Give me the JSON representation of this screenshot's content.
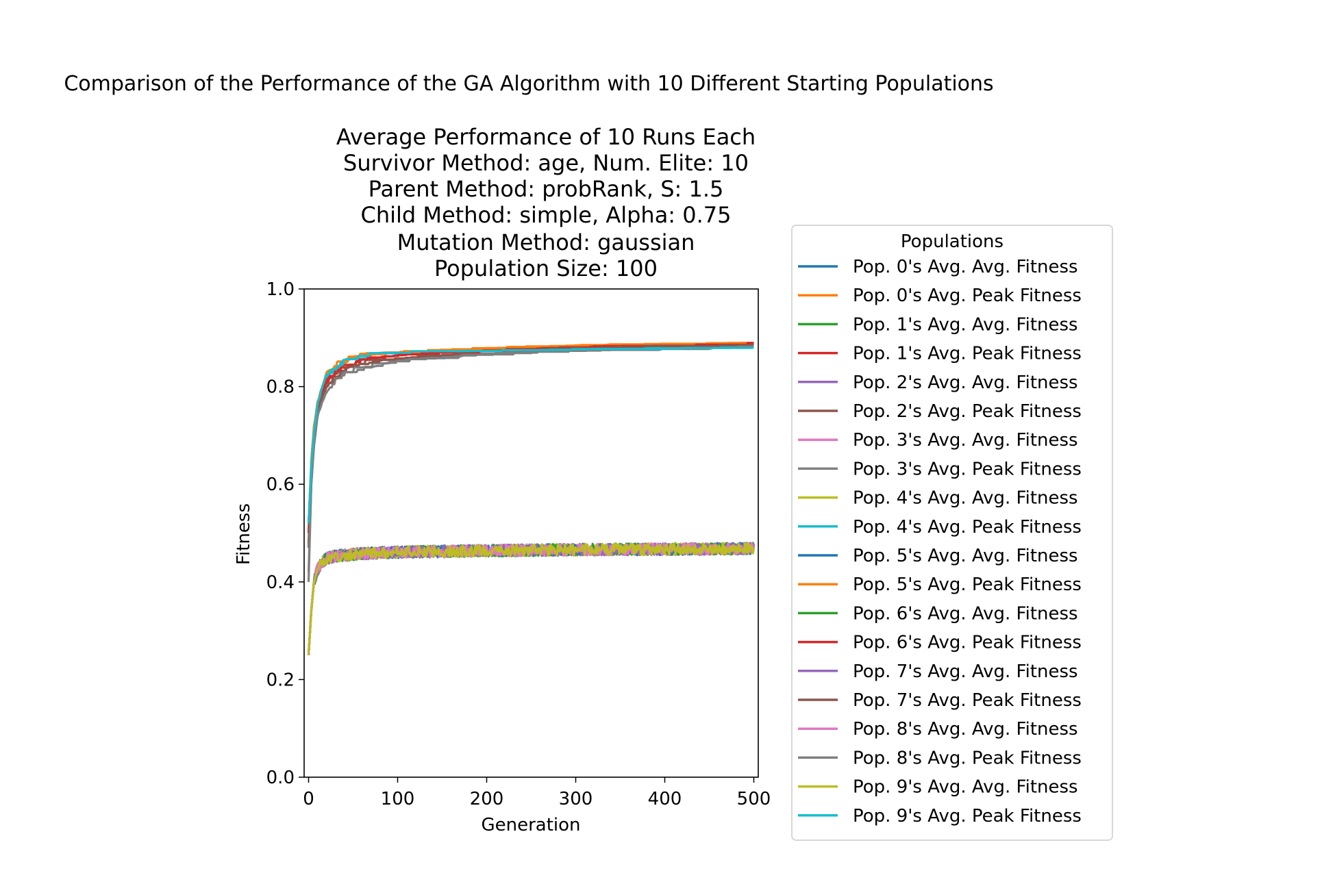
{
  "chart_data": {
    "type": "line",
    "suptitle": "Comparison of the Performance of the GA Algorithm with 10 Different Starting Populations",
    "title_lines": [
      "Average Performance of 10 Runs Each",
      "Survivor Method: age, Num. Elite: 10",
      "Parent Method: probRank, S: 1.5",
      "Child Method: simple, Alpha: 0.75",
      "Mutation Method: gaussian",
      "Population Size: 100"
    ],
    "xlabel": "Generation",
    "ylabel": "Fitness",
    "xlim": [
      -5,
      505
    ],
    "ylim": [
      0.0,
      1.0
    ],
    "xticks": [
      0,
      100,
      200,
      300,
      400,
      500
    ],
    "xtick_labels": [
      "0",
      "100",
      "200",
      "300",
      "400",
      "500"
    ],
    "yticks": [
      0.0,
      0.2,
      0.4,
      0.6,
      0.8,
      1.0
    ],
    "ytick_labels": [
      "0.0",
      "0.2",
      "0.4",
      "0.6",
      "0.8",
      "1.0"
    ],
    "legend": {
      "title": "Populations",
      "placement": "outside-right"
    },
    "series": [
      {
        "name": "Pop. 0's Avg. Avg. Fitness",
        "color": "#1f77b4",
        "kind": "avg",
        "x": [
          0,
          3,
          6,
          10,
          15,
          20,
          30,
          40,
          60,
          100,
          200,
          300,
          400,
          500
        ],
        "y": [
          0.25,
          0.34,
          0.4,
          0.425,
          0.44,
          0.448,
          0.453,
          0.455,
          0.458,
          0.461,
          0.464,
          0.466,
          0.467,
          0.468
        ]
      },
      {
        "name": "Pop. 0's Avg. Peak Fitness",
        "color": "#ff7f0e",
        "kind": "peak",
        "x": [
          0,
          3,
          6,
          10,
          15,
          20,
          30,
          40,
          60,
          100,
          200,
          300,
          400,
          500
        ],
        "y": [
          0.52,
          0.64,
          0.71,
          0.76,
          0.79,
          0.82,
          0.845,
          0.855,
          0.865,
          0.872,
          0.88,
          0.885,
          0.888,
          0.89
        ]
      },
      {
        "name": "Pop. 1's Avg. Avg. Fitness",
        "color": "#2ca02c",
        "kind": "avg",
        "x": [
          0,
          3,
          6,
          10,
          15,
          20,
          30,
          40,
          60,
          100,
          200,
          300,
          400,
          500
        ],
        "y": [
          0.25,
          0.34,
          0.4,
          0.425,
          0.44,
          0.448,
          0.453,
          0.455,
          0.458,
          0.461,
          0.464,
          0.466,
          0.467,
          0.468
        ]
      },
      {
        "name": "Pop. 1's Avg. Peak Fitness",
        "color": "#d62728",
        "kind": "peak",
        "x": [
          0,
          3,
          6,
          10,
          15,
          20,
          30,
          40,
          60,
          100,
          200,
          300,
          400,
          500
        ],
        "y": [
          0.5,
          0.63,
          0.7,
          0.755,
          0.785,
          0.81,
          0.835,
          0.85,
          0.86,
          0.865,
          0.875,
          0.882,
          0.886,
          0.89
        ]
      },
      {
        "name": "Pop. 2's Avg. Avg. Fitness",
        "color": "#9467bd",
        "kind": "avg",
        "x": [
          0,
          3,
          6,
          10,
          15,
          20,
          30,
          40,
          60,
          100,
          200,
          300,
          400,
          500
        ],
        "y": [
          0.25,
          0.34,
          0.4,
          0.425,
          0.44,
          0.448,
          0.453,
          0.455,
          0.458,
          0.461,
          0.464,
          0.466,
          0.467,
          0.468
        ]
      },
      {
        "name": "Pop. 2's Avg. Peak Fitness",
        "color": "#8c564b",
        "kind": "peak",
        "x": [
          0,
          3,
          6,
          10,
          15,
          20,
          30,
          40,
          60,
          100,
          200,
          300,
          400,
          500
        ],
        "y": [
          0.48,
          0.62,
          0.69,
          0.75,
          0.78,
          0.8,
          0.83,
          0.84,
          0.855,
          0.862,
          0.87,
          0.878,
          0.882,
          0.885
        ]
      },
      {
        "name": "Pop. 3's Avg. Avg. Fitness",
        "color": "#e377c2",
        "kind": "avg",
        "x": [
          0,
          3,
          6,
          10,
          15,
          20,
          30,
          40,
          60,
          100,
          200,
          300,
          400,
          500
        ],
        "y": [
          0.25,
          0.34,
          0.4,
          0.425,
          0.44,
          0.448,
          0.453,
          0.455,
          0.458,
          0.461,
          0.464,
          0.466,
          0.467,
          0.468
        ]
      },
      {
        "name": "Pop. 3's Avg. Peak Fitness",
        "color": "#7f7f7f",
        "kind": "peak",
        "x": [
          0,
          3,
          6,
          10,
          15,
          20,
          30,
          40,
          60,
          100,
          200,
          300,
          400,
          500
        ],
        "y": [
          0.4,
          0.6,
          0.68,
          0.745,
          0.775,
          0.8,
          0.825,
          0.835,
          0.845,
          0.855,
          0.87,
          0.876,
          0.88,
          0.885
        ]
      },
      {
        "name": "Pop. 4's Avg. Avg. Fitness",
        "color": "#bcbd22",
        "kind": "avg",
        "x": [
          0,
          3,
          6,
          10,
          15,
          20,
          30,
          40,
          60,
          100,
          200,
          300,
          400,
          500
        ],
        "y": [
          0.25,
          0.34,
          0.4,
          0.425,
          0.44,
          0.448,
          0.453,
          0.455,
          0.458,
          0.461,
          0.464,
          0.466,
          0.467,
          0.468
        ]
      },
      {
        "name": "Pop. 4's Avg. Peak Fitness",
        "color": "#17becf",
        "kind": "peak",
        "x": [
          0,
          3,
          6,
          10,
          15,
          20,
          30,
          40,
          60,
          100,
          200,
          300,
          400,
          500
        ],
        "y": [
          0.52,
          0.64,
          0.71,
          0.765,
          0.8,
          0.82,
          0.845,
          0.855,
          0.868,
          0.872,
          0.875,
          0.878,
          0.88,
          0.882
        ]
      },
      {
        "name": "Pop. 5's Avg. Avg. Fitness",
        "color": "#1f77b4",
        "kind": "avg",
        "x": [
          0,
          3,
          6,
          10,
          15,
          20,
          30,
          40,
          60,
          100,
          200,
          300,
          400,
          500
        ],
        "y": [
          0.25,
          0.34,
          0.4,
          0.425,
          0.44,
          0.448,
          0.453,
          0.455,
          0.458,
          0.461,
          0.464,
          0.466,
          0.467,
          0.468
        ]
      },
      {
        "name": "Pop. 5's Avg. Peak Fitness",
        "color": "#ff7f0e",
        "kind": "peak",
        "x": [
          0,
          3,
          6,
          10,
          15,
          20,
          30,
          40,
          60,
          100,
          200,
          300,
          400,
          500
        ],
        "y": [
          0.52,
          0.65,
          0.72,
          0.77,
          0.8,
          0.83,
          0.85,
          0.86,
          0.87,
          0.872,
          0.88,
          0.886,
          0.888,
          0.89
        ]
      },
      {
        "name": "Pop. 6's Avg. Avg. Fitness",
        "color": "#2ca02c",
        "kind": "avg",
        "x": [
          0,
          3,
          6,
          10,
          15,
          20,
          30,
          40,
          60,
          100,
          200,
          300,
          400,
          500
        ],
        "y": [
          0.25,
          0.34,
          0.4,
          0.425,
          0.44,
          0.448,
          0.453,
          0.455,
          0.458,
          0.461,
          0.464,
          0.466,
          0.467,
          0.468
        ]
      },
      {
        "name": "Pop. 6's Avg. Peak Fitness",
        "color": "#d62728",
        "kind": "peak",
        "x": [
          0,
          3,
          6,
          10,
          15,
          20,
          30,
          40,
          60,
          100,
          200,
          300,
          400,
          500
        ],
        "y": [
          0.5,
          0.63,
          0.7,
          0.755,
          0.79,
          0.815,
          0.835,
          0.848,
          0.858,
          0.866,
          0.876,
          0.882,
          0.886,
          0.891
        ]
      },
      {
        "name": "Pop. 7's Avg. Avg. Fitness",
        "color": "#9467bd",
        "kind": "avg",
        "x": [
          0,
          3,
          6,
          10,
          15,
          20,
          30,
          40,
          60,
          100,
          200,
          300,
          400,
          500
        ],
        "y": [
          0.25,
          0.34,
          0.4,
          0.425,
          0.44,
          0.448,
          0.453,
          0.455,
          0.458,
          0.461,
          0.464,
          0.466,
          0.467,
          0.468
        ]
      },
      {
        "name": "Pop. 7's Avg. Peak Fitness",
        "color": "#8c564b",
        "kind": "peak",
        "x": [
          0,
          3,
          6,
          10,
          15,
          20,
          30,
          40,
          60,
          100,
          200,
          300,
          400,
          500
        ],
        "y": [
          0.47,
          0.62,
          0.69,
          0.75,
          0.78,
          0.8,
          0.825,
          0.84,
          0.85,
          0.86,
          0.875,
          0.88,
          0.884,
          0.887
        ]
      },
      {
        "name": "Pop. 8's Avg. Avg. Fitness",
        "color": "#e377c2",
        "kind": "avg",
        "x": [
          0,
          3,
          6,
          10,
          15,
          20,
          30,
          40,
          60,
          100,
          200,
          300,
          400,
          500
        ],
        "y": [
          0.25,
          0.34,
          0.4,
          0.425,
          0.44,
          0.448,
          0.453,
          0.455,
          0.458,
          0.461,
          0.464,
          0.466,
          0.467,
          0.468
        ]
      },
      {
        "name": "Pop. 8's Avg. Peak Fitness",
        "color": "#7f7f7f",
        "kind": "peak",
        "x": [
          0,
          3,
          6,
          10,
          15,
          20,
          30,
          40,
          60,
          100,
          200,
          300,
          400,
          500
        ],
        "y": [
          0.42,
          0.6,
          0.68,
          0.74,
          0.77,
          0.79,
          0.82,
          0.83,
          0.84,
          0.855,
          0.868,
          0.874,
          0.878,
          0.883
        ]
      },
      {
        "name": "Pop. 9's Avg. Avg. Fitness",
        "color": "#bcbd22",
        "kind": "avg",
        "x": [
          0,
          3,
          6,
          10,
          15,
          20,
          30,
          40,
          60,
          100,
          200,
          300,
          400,
          500
        ],
        "y": [
          0.25,
          0.34,
          0.4,
          0.425,
          0.44,
          0.448,
          0.453,
          0.455,
          0.458,
          0.461,
          0.464,
          0.466,
          0.467,
          0.468
        ]
      },
      {
        "name": "Pop. 9's Avg. Peak Fitness",
        "color": "#17becf",
        "kind": "peak",
        "x": [
          0,
          3,
          6,
          10,
          15,
          20,
          30,
          40,
          60,
          100,
          200,
          300,
          400,
          500
        ],
        "y": [
          0.52,
          0.64,
          0.71,
          0.765,
          0.8,
          0.825,
          0.845,
          0.858,
          0.868,
          0.872,
          0.875,
          0.877,
          0.879,
          0.88
        ]
      }
    ]
  }
}
